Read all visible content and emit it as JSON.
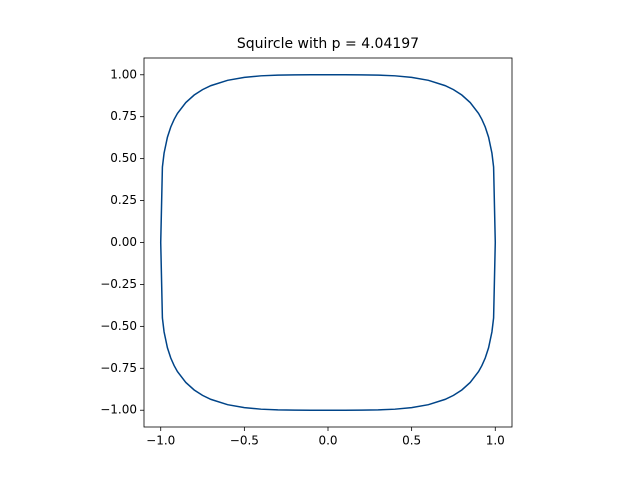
{
  "chart_data": {
    "type": "line",
    "title": "Squircle with p = 4.04197",
    "series": [
      {
        "color": "#004488",
        "x": [
          -1,
          -0.99,
          -0.98,
          -0.96,
          -0.94,
          -0.92,
          -0.9,
          -0.85,
          -0.8,
          -0.75,
          -0.7,
          -0.6,
          -0.5,
          -0.4,
          -0.3,
          -0.2,
          -0.1,
          0,
          0.1,
          0.2,
          0.3,
          0.4,
          0.5,
          0.6,
          0.7,
          0.75,
          0.8,
          0.85,
          0.9,
          0.92,
          0.94,
          0.96,
          0.98,
          0.99,
          1,
          1,
          0.99,
          0.98,
          0.96,
          0.94,
          0.92,
          0.9,
          0.85,
          0.8,
          0.75,
          0.7,
          0.6,
          0.5,
          0.4,
          0.3,
          0.2,
          0.1,
          0,
          -0.1,
          -0.2,
          -0.3,
          -0.4,
          -0.5,
          -0.6,
          -0.7,
          -0.75,
          -0.8,
          -0.85,
          -0.9,
          -0.92,
          -0.94,
          -0.96,
          -0.98,
          -0.99,
          -1
        ],
        "values": [
          0,
          0.45,
          0.533,
          0.6276,
          0.6886,
          0.7338,
          0.7695,
          0.8346,
          0.8792,
          0.9114,
          0.9354,
          0.967,
          0.9846,
          0.9938,
          0.9981,
          0.9996,
          1,
          1,
          1,
          0.9996,
          0.9981,
          0.9938,
          0.9846,
          0.967,
          0.9354,
          0.9114,
          0.8792,
          0.8346,
          0.7695,
          0.7338,
          0.6886,
          0.6276,
          0.533,
          0.45,
          0,
          0,
          -0.45,
          -0.533,
          -0.6276,
          -0.6886,
          -0.7338,
          -0.7695,
          -0.8346,
          -0.8792,
          -0.9114,
          -0.9354,
          -0.967,
          -0.9846,
          -0.9938,
          -0.9981,
          -0.9996,
          -1,
          -1,
          -1,
          -0.9996,
          -0.9981,
          -0.9938,
          -0.9846,
          -0.967,
          -0.9354,
          -0.9114,
          -0.8792,
          -0.8346,
          -0.7695,
          -0.7338,
          -0.6886,
          -0.6276,
          -0.533,
          -0.45,
          0
        ]
      }
    ],
    "xlim": [
      -1.1,
      1.1
    ],
    "ylim": [
      -1.1,
      1.1
    ],
    "xticks": [
      {
        "value": -1,
        "label": "−1.0"
      },
      {
        "value": -0.5,
        "label": "−0.5"
      },
      {
        "value": 0,
        "label": "0.0"
      },
      {
        "value": 0.5,
        "label": "0.5"
      },
      {
        "value": 1,
        "label": "1.0"
      }
    ],
    "yticks": [
      {
        "value": -1,
        "label": "−1.00"
      },
      {
        "value": -0.75,
        "label": "−0.75"
      },
      {
        "value": -0.5,
        "label": "−0.50"
      },
      {
        "value": -0.25,
        "label": "−0.25"
      },
      {
        "value": 0,
        "label": "0.00"
      },
      {
        "value": 0.25,
        "label": "0.25"
      },
      {
        "value": 0.5,
        "label": "0.50"
      },
      {
        "value": 0.75,
        "label": "0.75"
      },
      {
        "value": 1,
        "label": "1.00"
      }
    ],
    "grid": false
  }
}
